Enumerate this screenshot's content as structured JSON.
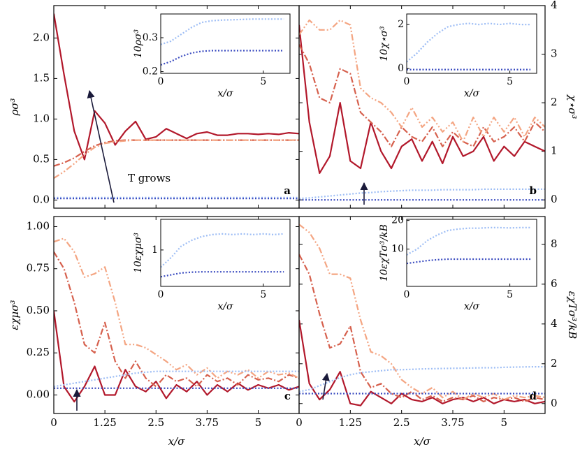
{
  "chart_data": [
    {
      "type": "line",
      "y_axis_side": "left",
      "ylabel": "ρσ³",
      "panel_label": "a",
      "annotation": "T grows",
      "xlim": [
        0,
        6
      ],
      "xticks": [
        0,
        1.25,
        2.5,
        3.75,
        5
      ],
      "ylim": [
        -0.1,
        2.4
      ],
      "yticks": [
        {
          "value": 0,
          "label": "0.0"
        },
        0.5,
        {
          "value": 1,
          "label": "1.0"
        },
        1.5,
        {
          "value": 2,
          "label": "2.0"
        }
      ],
      "x": [
        0,
        0.25,
        0.5,
        0.75,
        1,
        1.25,
        1.5,
        1.75,
        2,
        2.25,
        2.5,
        2.75,
        3,
        3.25,
        3.5,
        3.75,
        4,
        4.25,
        4.5,
        4.75,
        5,
        5.25,
        5.5,
        5.75,
        6
      ],
      "series": [
        {
          "color": "#b2182b",
          "dash": "solid",
          "values": [
            2.3,
            1.55,
            0.85,
            0.5,
            1.1,
            0.95,
            0.68,
            0.85,
            0.97,
            0.75,
            0.78,
            0.88,
            0.82,
            0.76,
            0.82,
            0.84,
            0.8,
            0.8,
            0.82,
            0.82,
            0.81,
            0.82,
            0.81,
            0.83,
            0.82
          ]
        },
        {
          "color": "#d6604d",
          "dash": "dashdot",
          "values": [
            0.42,
            0.46,
            0.52,
            0.6,
            0.67,
            0.71,
            0.73,
            0.74,
            0.74,
            0.74,
            0.74,
            0.74,
            0.74,
            0.74,
            0.74,
            0.74,
            0.74,
            0.74,
            0.74,
            0.74,
            0.74,
            0.74,
            0.74,
            0.74,
            0.74
          ]
        },
        {
          "color": "#f4a582",
          "dash": "dashdotdot",
          "values": [
            0.27,
            0.35,
            0.45,
            0.56,
            0.65,
            0.7,
            0.72,
            0.73,
            0.74,
            0.74,
            0.74,
            0.74,
            0.74,
            0.74,
            0.74,
            0.74,
            0.74,
            0.74,
            0.74,
            0.74,
            0.74,
            0.74,
            0.74,
            0.74,
            0.74
          ]
        },
        {
          "color": "#9dbdf5",
          "dash": "dotted",
          "values": [
            0.03,
            0.03,
            0.03,
            0.03,
            0.03,
            0.03,
            0.03,
            0.03,
            0.03,
            0.03,
            0.03,
            0.03,
            0.03,
            0.03,
            0.03,
            0.03,
            0.03,
            0.03,
            0.03,
            0.03,
            0.03,
            0.03,
            0.03,
            0.03,
            0.03
          ]
        },
        {
          "color": "#3b4cc0",
          "dash": "dotted",
          "values": [
            0.02,
            0.02,
            0.02,
            0.02,
            0.02,
            0.02,
            0.02,
            0.02,
            0.02,
            0.02,
            0.02,
            0.02,
            0.02,
            0.02,
            0.02,
            0.02,
            0.02,
            0.02,
            0.02,
            0.02,
            0.02,
            0.02,
            0.02,
            0.02,
            0.02
          ]
        }
      ],
      "inset": {
        "xlabel": "x/σ",
        "ylabel": "10ρσ³",
        "xlim": [
          0,
          6.3
        ],
        "xticks": [
          0,
          5
        ],
        "ylim": [
          0.195,
          0.37
        ],
        "yticks": [
          0.2,
          0.3
        ],
        "x": [
          0,
          0.5,
          1,
          1.5,
          2,
          2.5,
          3,
          3.5,
          4,
          4.5,
          5,
          5.5,
          6
        ],
        "series": [
          {
            "color": "#9dbdf5",
            "values": [
              0.28,
              0.29,
              0.31,
              0.33,
              0.345,
              0.35,
              0.352,
              0.353,
              0.354,
              0.355,
              0.355,
              0.355,
              0.355
            ]
          },
          {
            "color": "#3b4cc0",
            "values": [
              0.22,
              0.23,
              0.245,
              0.255,
              0.26,
              0.262,
              0.262,
              0.262,
              0.262,
              0.262,
              0.262,
              0.262,
              0.262
            ]
          }
        ]
      }
    },
    {
      "type": "line",
      "y_axis_side": "right",
      "ylabel": "χ⋆σ³",
      "panel_label": "b",
      "xlim": [
        0,
        6
      ],
      "xticks": [
        0,
        1.25,
        2.5,
        3.75,
        5
      ],
      "ylim": [
        -0.17,
        4
      ],
      "yticks": [
        0,
        1,
        2,
        3,
        4
      ],
      "x": [
        0,
        0.25,
        0.5,
        0.75,
        1,
        1.25,
        1.5,
        1.75,
        2,
        2.25,
        2.5,
        2.75,
        3,
        3.25,
        3.5,
        3.75,
        4,
        4.25,
        4.5,
        4.75,
        5,
        5.25,
        5.5,
        5.75,
        6
      ],
      "series": [
        {
          "color": "#b2182b",
          "dash": "solid",
          "values": [
            3.6,
            1.6,
            0.55,
            0.9,
            2.0,
            0.8,
            0.65,
            1.6,
            1.0,
            0.65,
            1.1,
            1.25,
            0.8,
            1.2,
            0.75,
            1.3,
            0.9,
            1.0,
            1.3,
            0.8,
            1.1,
            0.9,
            1.2,
            1.1,
            1.0
          ]
        },
        {
          "color": "#d6604d",
          "dash": "dashdot",
          "values": [
            3.2,
            2.8,
            2.1,
            2.0,
            2.7,
            2.6,
            1.8,
            1.6,
            1.4,
            1.1,
            1.5,
            1.3,
            1.2,
            1.5,
            1.1,
            1.4,
            1.2,
            1.1,
            1.5,
            1.2,
            1.3,
            1.5,
            1.2,
            1.6,
            1.4
          ]
        },
        {
          "color": "#f4a582",
          "dash": "dashdotdot",
          "values": [
            3.4,
            3.7,
            3.5,
            3.5,
            3.7,
            3.6,
            2.3,
            2.1,
            2.0,
            1.8,
            1.5,
            1.9,
            1.5,
            1.7,
            1.4,
            1.6,
            1.2,
            1.7,
            1.3,
            1.7,
            1.4,
            1.7,
            1.3,
            1.7,
            1.5
          ]
        },
        {
          "color": "#9dbdf5",
          "dash": "dotted",
          "values": [
            0.03,
            0.04,
            0.06,
            0.08,
            0.1,
            0.12,
            0.14,
            0.15,
            0.17,
            0.18,
            0.19,
            0.2,
            0.2,
            0.2,
            0.21,
            0.21,
            0.21,
            0.21,
            0.22,
            0.22,
            0.22,
            0.22,
            0.22,
            0.22,
            0.22
          ]
        },
        {
          "color": "#3b4cc0",
          "dash": "dotted",
          "values": [
            0,
            0,
            0,
            0,
            0,
            0,
            0,
            0,
            0,
            0,
            0,
            0,
            0,
            0,
            0,
            0,
            0,
            0,
            0,
            0,
            0,
            0,
            0,
            0,
            0
          ]
        }
      ],
      "inset": {
        "xlabel": "x/σ",
        "ylabel": "10χ⋆σ³",
        "xlim": [
          0,
          6.3
        ],
        "xticks": [
          0,
          5
        ],
        "ylim": [
          -0.22,
          2.48
        ],
        "yticks": [
          0,
          2
        ],
        "x": [
          0,
          0.5,
          1,
          1.5,
          2,
          2.5,
          3,
          3.5,
          4,
          4.5,
          5,
          5.5,
          6
        ],
        "series": [
          {
            "color": "#9dbdf5",
            "values": [
              0.3,
              0.7,
              1.2,
              1.6,
              1.9,
              2.0,
              2.05,
              2.0,
              2.05,
              2.0,
              2.05,
              2.0,
              2.0
            ]
          },
          {
            "color": "#3b4cc0",
            "values": [
              -0.05,
              -0.05,
              -0.05,
              -0.05,
              -0.05,
              -0.05,
              -0.05,
              -0.05,
              -0.05,
              -0.05,
              -0.05,
              -0.05,
              -0.05
            ]
          }
        ]
      }
    },
    {
      "type": "line",
      "y_axis_side": "left",
      "ylabel": "εχμσ³",
      "xlabel": "x/σ",
      "panel_label": "c",
      "xlim": [
        0,
        6
      ],
      "xticks": [
        0,
        1.25,
        2.5,
        3.75,
        5
      ],
      "ylim": [
        -0.11,
        1.06
      ],
      "yticks": [
        {
          "value": 0,
          "label": "0.00"
        },
        0.25,
        {
          "value": 0.5,
          "label": "0.50"
        },
        0.75,
        {
          "value": 1,
          "label": "1.00"
        }
      ],
      "x": [
        0,
        0.25,
        0.5,
        0.75,
        1,
        1.25,
        1.5,
        1.75,
        2,
        2.25,
        2.5,
        2.75,
        3,
        3.25,
        3.5,
        3.75,
        4,
        4.25,
        4.5,
        4.75,
        5,
        5.25,
        5.5,
        5.75,
        6
      ],
      "series": [
        {
          "color": "#b2182b",
          "dash": "solid",
          "values": [
            0.5,
            0.05,
            -0.04,
            0.05,
            0.17,
            0.0,
            0.0,
            0.15,
            0.05,
            0.02,
            0.08,
            -0.02,
            0.06,
            0.02,
            0.08,
            0.0,
            0.06,
            0.02,
            0.07,
            0.03,
            0.06,
            0.04,
            0.06,
            0.03,
            0.05
          ]
        },
        {
          "color": "#d6604d",
          "dash": "dashdot",
          "values": [
            0.85,
            0.75,
            0.55,
            0.3,
            0.25,
            0.43,
            0.2,
            0.1,
            0.2,
            0.1,
            0.05,
            0.12,
            0.08,
            0.1,
            0.05,
            0.12,
            0.08,
            0.1,
            0.06,
            0.12,
            0.09,
            0.1,
            0.08,
            0.12,
            0.1
          ]
        },
        {
          "color": "#f4a582",
          "dash": "dashdotdot",
          "values": [
            0.91,
            0.93,
            0.85,
            0.7,
            0.72,
            0.76,
            0.55,
            0.3,
            0.3,
            0.28,
            0.24,
            0.2,
            0.15,
            0.18,
            0.12,
            0.16,
            0.1,
            0.14,
            0.12,
            0.15,
            0.1,
            0.14,
            0.12,
            0.13,
            0.1
          ]
        },
        {
          "color": "#9dbdf5",
          "dash": "dotted",
          "values": [
            0.05,
            0.06,
            0.07,
            0.08,
            0.09,
            0.1,
            0.11,
            0.12,
            0.13,
            0.135,
            0.14,
            0.14,
            0.14,
            0.14,
            0.14,
            0.14,
            0.14,
            0.14,
            0.14,
            0.14,
            0.14,
            0.14,
            0.14,
            0.14,
            0.14
          ]
        },
        {
          "color": "#3b4cc0",
          "dash": "dotted",
          "values": [
            0.04,
            0.04,
            0.04,
            0.04,
            0.04,
            0.04,
            0.04,
            0.04,
            0.04,
            0.04,
            0.04,
            0.04,
            0.04,
            0.04,
            0.04,
            0.04,
            0.04,
            0.04,
            0.04,
            0.04,
            0.04,
            0.04,
            0.04,
            0.04,
            0.04
          ]
        }
      ],
      "inset": {
        "xlabel": "x/σ",
        "ylabel": "10εχμσ³",
        "xlim": [
          0,
          6.3
        ],
        "xticks": [
          0,
          5
        ],
        "ylim": [
          0.05,
          1.8
        ],
        "yticks": [
          1
        ],
        "x": [
          0,
          0.5,
          1,
          1.5,
          2,
          2.5,
          3,
          3.5,
          4,
          4.5,
          5,
          5.5,
          6
        ],
        "series": [
          {
            "color": "#9dbdf5",
            "values": [
              0.55,
              0.8,
              1.1,
              1.25,
              1.35,
              1.4,
              1.42,
              1.4,
              1.42,
              1.4,
              1.42,
              1.4,
              1.42
            ]
          },
          {
            "color": "#3b4cc0",
            "values": [
              0.3,
              0.35,
              0.4,
              0.42,
              0.43,
              0.43,
              0.43,
              0.43,
              0.43,
              0.43,
              0.43,
              0.43,
              0.43
            ]
          }
        ]
      }
    },
    {
      "type": "line",
      "y_axis_side": "right",
      "ylabel": "εχTσ³/kB",
      "xlabel": "x/σ",
      "panel_label": "d",
      "xlim": [
        0,
        6
      ],
      "xticks": [
        0,
        1.25,
        2.5,
        3.75,
        5
      ],
      "ylim": [
        -0.5,
        9.4
      ],
      "yticks": [
        0,
        2,
        4,
        6,
        8
      ],
      "x": [
        0,
        0.25,
        0.5,
        0.75,
        1,
        1.25,
        1.5,
        1.75,
        2,
        2.25,
        2.5,
        2.75,
        3,
        3.25,
        3.5,
        3.75,
        4,
        4.25,
        4.5,
        4.75,
        5,
        5.25,
        5.5,
        5.75,
        6
      ],
      "series": [
        {
          "color": "#b2182b",
          "dash": "solid",
          "values": [
            4.2,
            1.0,
            0.2,
            0.7,
            1.6,
            0.0,
            -0.1,
            0.6,
            0.3,
            0.0,
            0.5,
            0.2,
            0.1,
            0.3,
            0.0,
            0.2,
            0.3,
            0.1,
            0.3,
            0.0,
            0.2,
            0.1,
            0.2,
            0.0,
            0.1
          ]
        },
        {
          "color": "#d6604d",
          "dash": "dashdot",
          "values": [
            7.5,
            6.5,
            4.5,
            2.8,
            3.0,
            3.9,
            1.6,
            0.8,
            1.0,
            0.5,
            0.3,
            0.6,
            0.2,
            0.4,
            0.1,
            0.3,
            0.2,
            0.4,
            0.1,
            0.3,
            0.2,
            0.3,
            0.1,
            0.3,
            0.2
          ]
        },
        {
          "color": "#f4a582",
          "dash": "dashdotdot",
          "values": [
            9.0,
            8.6,
            7.8,
            6.5,
            6.5,
            6.3,
            4.2,
            2.6,
            2.4,
            2.0,
            1.2,
            0.8,
            0.5,
            0.8,
            0.3,
            0.6,
            0.2,
            0.5,
            0.3,
            0.5,
            0.2,
            0.4,
            0.3,
            0.4,
            0.3
          ]
        },
        {
          "color": "#9dbdf5",
          "dash": "dotted",
          "values": [
            0.6,
            0.7,
            0.9,
            1.1,
            1.3,
            1.45,
            1.55,
            1.6,
            1.65,
            1.7,
            1.7,
            1.72,
            1.74,
            1.75,
            1.76,
            1.77,
            1.78,
            1.79,
            1.8,
            1.8,
            1.82,
            1.83,
            1.84,
            1.85,
            1.85
          ]
        },
        {
          "color": "#3b4cc0",
          "dash": "dotted",
          "values": [
            0.5,
            0.5,
            0.5,
            0.5,
            0.5,
            0.5,
            0.5,
            0.5,
            0.5,
            0.5,
            0.5,
            0.5,
            0.5,
            0.5,
            0.5,
            0.5,
            0.5,
            0.5,
            0.5,
            0.5,
            0.5,
            0.5,
            0.5,
            0.5,
            0.5
          ]
        }
      ],
      "inset": {
        "xlabel": "x/σ",
        "ylabel": "10εχTσ³/kB",
        "xlim": [
          0,
          6.3
        ],
        "xticks": [
          0,
          5
        ],
        "ylim": [
          -3,
          20.4
        ],
        "yticks": [
          10,
          20
        ],
        "x": [
          0,
          0.5,
          1,
          1.5,
          2,
          2.5,
          3,
          3.5,
          4,
          4.5,
          5,
          5.5,
          6
        ],
        "series": [
          {
            "color": "#9dbdf5",
            "values": [
              8,
              10,
              13,
              15,
              16.5,
              17,
              17.3,
              17.3,
              17.5,
              17.5,
              17.4,
              17.5,
              17.5
            ]
          },
          {
            "color": "#3b4cc0",
            "values": [
              5,
              5.5,
              6,
              6.3,
              6.5,
              6.5,
              6.5,
              6.5,
              6.5,
              6.5,
              6.5,
              6.5,
              6.5
            ]
          }
        ]
      }
    }
  ]
}
